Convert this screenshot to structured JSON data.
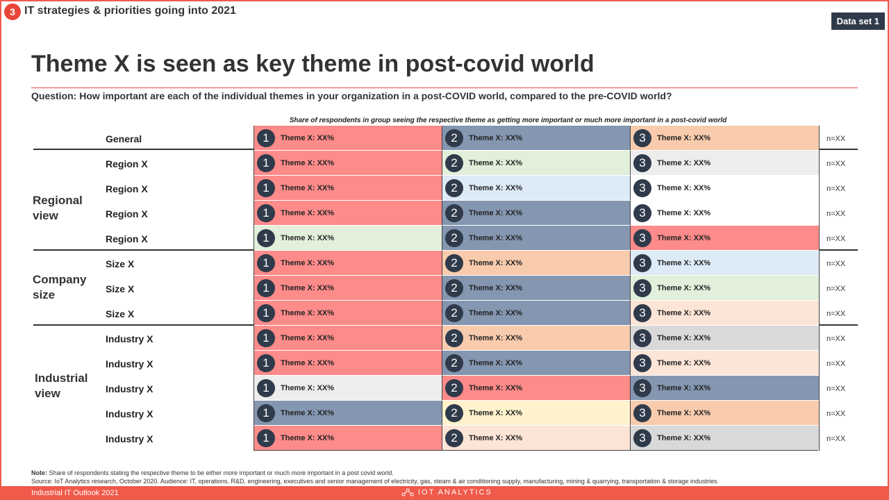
{
  "header": {
    "section_number": "3",
    "section_title": "IT strategies & priorities going into 2021",
    "dataset_label": "Data set 1"
  },
  "title": "Theme X is seen as key theme in post-covid world",
  "question": "Question: How important are each of the individual themes in your organization in a post-COVID world, compared to the pre-COVID world?",
  "share_caption": "Share of respondents in group  seeing the respective theme as getting more important or much more important in a post-covid world",
  "groups": [
    {
      "label_line1": "Regional",
      "label_line2": "view"
    },
    {
      "label_line1": "Company",
      "label_line2": "size"
    },
    {
      "label_line1": "Industrial",
      "label_line2": "view"
    }
  ],
  "rows": [
    {
      "label": "General",
      "n": "n=XX",
      "cells": [
        {
          "rank": "1",
          "text": "Theme X: XX%",
          "color": "#fd8b8a"
        },
        {
          "rank": "2",
          "text": "Theme X: XX%",
          "color": "#8496b0"
        },
        {
          "rank": "3",
          "text": "Theme X: XX%",
          "color": "#f8cbad"
        }
      ]
    },
    {
      "label": "Region X",
      "n": "n=XX",
      "cells": [
        {
          "rank": "1",
          "text": "Theme X: XX%",
          "color": "#fd8b8a"
        },
        {
          "rank": "2",
          "text": "Theme X: XX%",
          "color": "#e2efda"
        },
        {
          "rank": "3",
          "text": "Theme X: XX%",
          "color": "#ededed"
        }
      ]
    },
    {
      "label": "Region X",
      "n": "n=XX",
      "cells": [
        {
          "rank": "1",
          "text": "Theme X: XX%",
          "color": "#fd8b8a"
        },
        {
          "rank": "2",
          "text": "Theme X: XX%",
          "color": "#ddebf7"
        },
        {
          "rank": "3",
          "text": "Theme X: XX%",
          "color": "#ffffff"
        }
      ]
    },
    {
      "label": "Region X",
      "n": "n=XX",
      "cells": [
        {
          "rank": "1",
          "text": "Theme X: XX%",
          "color": "#fd8b8a"
        },
        {
          "rank": "2",
          "text": "Theme X: XX%",
          "color": "#8496b0"
        },
        {
          "rank": "3",
          "text": "Theme X: XX%",
          "color": "#ffffff"
        }
      ]
    },
    {
      "label": "Region X",
      "n": "n=XX",
      "cells": [
        {
          "rank": "1",
          "text": "Theme X: XX%",
          "color": "#e2efda"
        },
        {
          "rank": "2",
          "text": "Theme X: XX%",
          "color": "#8496b0"
        },
        {
          "rank": "3",
          "text": "Theme X: XX%",
          "color": "#fd8b8a"
        }
      ]
    },
    {
      "label": "Size X",
      "n": "n=XX",
      "cells": [
        {
          "rank": "1",
          "text": "Theme X: XX%",
          "color": "#fd8b8a"
        },
        {
          "rank": "2",
          "text": "Theme X: XX%",
          "color": "#f8cbad"
        },
        {
          "rank": "3",
          "text": "Theme X: XX%",
          "color": "#ddebf7"
        }
      ]
    },
    {
      "label": "Size X",
      "n": "n=XX",
      "cells": [
        {
          "rank": "1",
          "text": "Theme X: XX%",
          "color": "#fd8b8a"
        },
        {
          "rank": "2",
          "text": "Theme X: XX%",
          "color": "#8496b0"
        },
        {
          "rank": "3",
          "text": "Theme X: XX%",
          "color": "#e2efda"
        }
      ]
    },
    {
      "label": "Size X",
      "n": "n=XX",
      "cells": [
        {
          "rank": "1",
          "text": "Theme X: XX%",
          "color": "#fd8b8a"
        },
        {
          "rank": "2",
          "text": "Theme X: XX%",
          "color": "#8496b0"
        },
        {
          "rank": "3",
          "text": "Theme X: XX%",
          "color": "#fce4d6"
        }
      ]
    },
    {
      "label": "Industry X",
      "n": "n=XX",
      "cells": [
        {
          "rank": "1",
          "text": "Theme X: XX%",
          "color": "#fd8b8a"
        },
        {
          "rank": "2",
          "text": "Theme X: XX%",
          "color": "#f8cbad"
        },
        {
          "rank": "3",
          "text": "Theme X: XX%",
          "color": "#d9d9d9"
        }
      ]
    },
    {
      "label": "Industry X",
      "n": "n=XX",
      "cells": [
        {
          "rank": "1",
          "text": "Theme X: XX%",
          "color": "#fd8b8a"
        },
        {
          "rank": "2",
          "text": "Theme X: XX%",
          "color": "#8496b0"
        },
        {
          "rank": "3",
          "text": "Theme X: XX%",
          "color": "#fce4d6"
        }
      ]
    },
    {
      "label": "Industry X",
      "n": "n=XX",
      "cells": [
        {
          "rank": "1",
          "text": "Theme X: XX%",
          "color": "#ededed"
        },
        {
          "rank": "2",
          "text": "Theme X: XX%",
          "color": "#fd8b8a"
        },
        {
          "rank": "3",
          "text": "Theme X: XX%",
          "color": "#8496b0"
        }
      ]
    },
    {
      "label": "Industry X",
      "n": "n=XX",
      "cells": [
        {
          "rank": "1",
          "text": "Theme X: XX%",
          "color": "#8496b0"
        },
        {
          "rank": "2",
          "text": "Theme X: XX%",
          "color": "#fff2cc"
        },
        {
          "rank": "3",
          "text": "Theme X: XX%",
          "color": "#f8cbad"
        }
      ]
    },
    {
      "label": "Industry X",
      "n": "n=XX",
      "cells": [
        {
          "rank": "1",
          "text": "Theme X: XX%",
          "color": "#fd8b8a"
        },
        {
          "rank": "2",
          "text": "Theme X: XX%",
          "color": "#fce4d6"
        },
        {
          "rank": "3",
          "text": "Theme X: XX%",
          "color": "#d9d9d9"
        }
      ]
    }
  ],
  "note": {
    "label": "Note:",
    "text": " Share of respondents stating the respective theme to be either more important or much more important in a post covid world."
  },
  "source": "Source: IoT Analytics research, October 2020. Audience: IT, operations, R&D, engineering,  executives and senior management of electricity, gas, steam & air conditioning supply, manufacturing, mining & quarrying, transportation & storage industries.",
  "footer": {
    "left": "Industrial IT Outlook 2021",
    "brand": "IOT ANALYTICS"
  }
}
